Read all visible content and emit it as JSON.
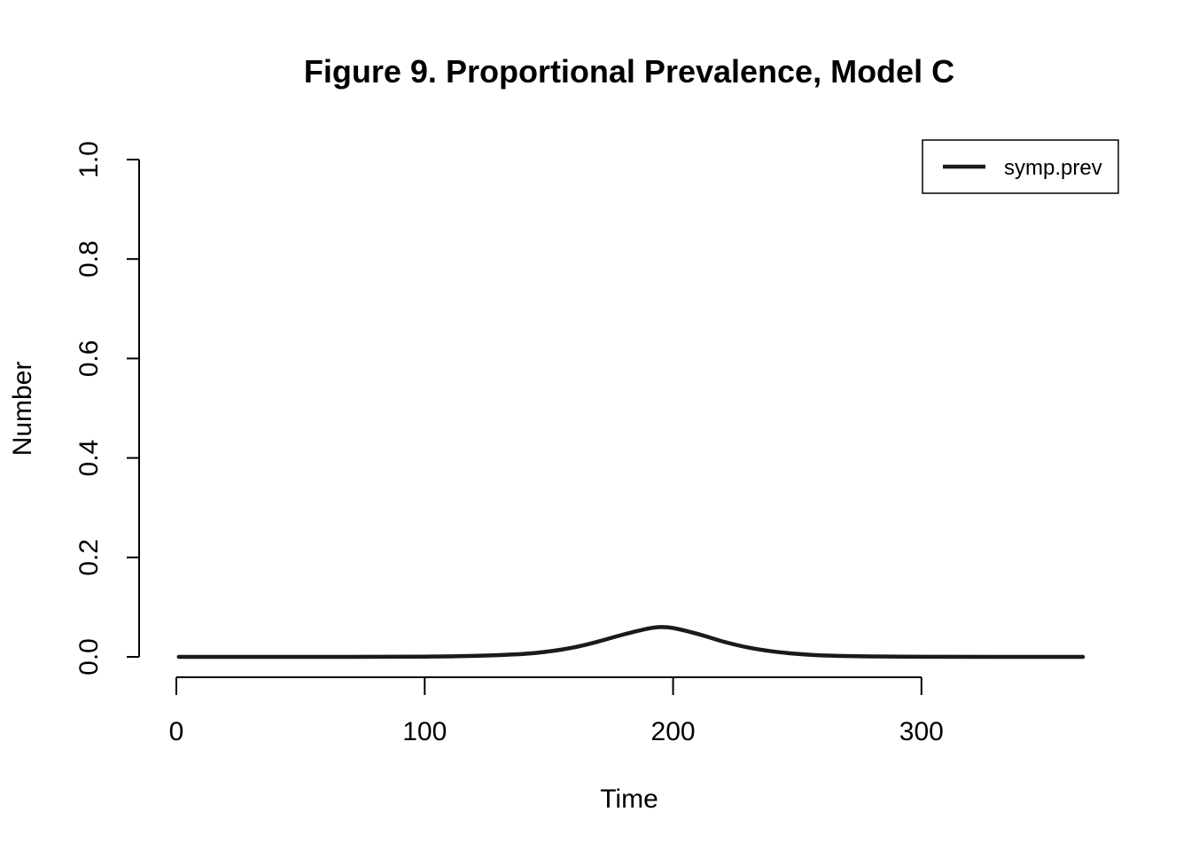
{
  "chart_data": {
    "type": "line",
    "title": "Figure 9. Proportional Prevalence, Model C",
    "xlabel": "Time",
    "ylabel": "Number",
    "xlim": [
      0,
      365
    ],
    "ylim": [
      0,
      1
    ],
    "x_ticks": [
      0,
      100,
      200,
      300
    ],
    "x_tick_labels": [
      "0",
      "100",
      "200",
      "300"
    ],
    "y_ticks": [
      0,
      0.2,
      0.4,
      0.6,
      0.8,
      1.0
    ],
    "y_tick_labels": [
      "0.0",
      "0.2",
      "0.4",
      "0.6",
      "0.8",
      "1.0"
    ],
    "grid": false,
    "legend": {
      "position": "top-right",
      "entries": [
        "symp.prev"
      ]
    },
    "series": [
      {
        "name": "symp.prev",
        "color": "#1a1a1a",
        "x": [
          1,
          50,
          100,
          120,
          140,
          150,
          160,
          170,
          180,
          190,
          195,
          200,
          210,
          220,
          230,
          240,
          250,
          260,
          280,
          300,
          330,
          365
        ],
        "y": [
          0,
          0,
          0.0005,
          0.002,
          0.006,
          0.011,
          0.019,
          0.031,
          0.045,
          0.057,
          0.06,
          0.058,
          0.046,
          0.031,
          0.019,
          0.011,
          0.006,
          0.003,
          0.001,
          0.0003,
          0.0001,
          0
        ]
      }
    ]
  }
}
